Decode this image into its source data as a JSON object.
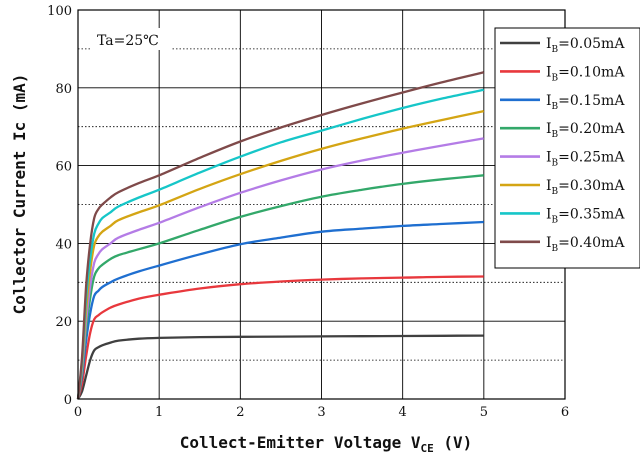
{
  "chart_data": {
    "type": "line",
    "title": "",
    "annotation": "Ta=25℃",
    "xlabel": {
      "main": "Collect-Emitter Voltage V",
      "sub": "CE",
      "unit": " (V)"
    },
    "ylabel": "Collector  Current Ic (mA)",
    "xlim": [
      0,
      6
    ],
    "ylim": [
      0,
      100
    ],
    "xticks": [
      0,
      1,
      2,
      3,
      4,
      5,
      6
    ],
    "yticks": [
      0,
      20,
      40,
      60,
      80,
      100
    ],
    "grid": {
      "solid_y": [
        20,
        40,
        60,
        80
      ],
      "dotted_y": [
        10,
        30,
        50,
        70,
        90
      ],
      "solid_x": [
        1,
        2,
        3,
        4,
        5
      ]
    },
    "legend_position": "top-right",
    "x": [
      0,
      0.05,
      0.1,
      0.15,
      0.2,
      0.25,
      0.3,
      0.4,
      0.5,
      0.75,
      1,
      1.5,
      2,
      2.5,
      3,
      3.5,
      4,
      4.5,
      5
    ],
    "series": [
      {
        "name": "I",
        "sub": "B",
        "value": "=0.05mA",
        "color": "#404040",
        "values": [
          0,
          2,
          6,
          10,
          12.5,
          13.3,
          13.8,
          14.5,
          15,
          15.5,
          15.7,
          15.9,
          16.0,
          16.05,
          16.1,
          16.15,
          16.2,
          16.25,
          16.3
        ]
      },
      {
        "name": "I",
        "sub": "B",
        "value": "=0.10mA",
        "color": "#e8383d",
        "values": [
          0,
          4,
          11,
          17,
          20.5,
          21.5,
          22.3,
          23.5,
          24.3,
          25.8,
          26.8,
          28.4,
          29.5,
          30.2,
          30.7,
          31.0,
          31.2,
          31.4,
          31.5
        ]
      },
      {
        "name": "I",
        "sub": "B",
        "value": "=0.15mA",
        "color": "#1f6fd0",
        "values": [
          0,
          6,
          15,
          22,
          26.5,
          27.8,
          28.8,
          30.0,
          31.0,
          32.8,
          34.3,
          37.2,
          39.8,
          41.5,
          43.0,
          43.8,
          44.5,
          45.0,
          45.5
        ]
      },
      {
        "name": "I",
        "sub": "B",
        "value": "=0.20mA",
        "color": "#33a86a",
        "values": [
          0,
          7,
          18,
          26,
          31.5,
          33.5,
          34.5,
          36.0,
          37.0,
          38.5,
          40.0,
          43.5,
          46.8,
          49.6,
          52.0,
          53.8,
          55.3,
          56.5,
          57.5
        ]
      },
      {
        "name": "I",
        "sub": "B",
        "value": "=0.25mA",
        "color": "#b47ce6",
        "values": [
          0,
          8,
          20,
          29,
          35,
          37.2,
          38.5,
          40.0,
          41.5,
          43.5,
          45.3,
          49.3,
          53.0,
          56.2,
          59.0,
          61.3,
          63.3,
          65.2,
          67.0
        ]
      },
      {
        "name": "I",
        "sub": "B",
        "value": "=0.30mA",
        "color": "#d4a514",
        "values": [
          0,
          9,
          23,
          33,
          39.5,
          41.8,
          43.0,
          44.5,
          46.0,
          48.0,
          49.8,
          54.0,
          57.8,
          61.2,
          64.3,
          67.0,
          69.5,
          71.8,
          74.0
        ]
      },
      {
        "name": "I",
        "sub": "B",
        "value": "=0.35mA",
        "color": "#16c6c8",
        "values": [
          0,
          10,
          26,
          36,
          42.5,
          45,
          46.5,
          48.0,
          49.5,
          51.8,
          53.8,
          58.2,
          62.3,
          66.0,
          69.0,
          72.0,
          74.8,
          77.3,
          79.5
        ]
      },
      {
        "name": "I",
        "sub": "B",
        "value": "=0.40mA",
        "color": "#7f4a4a",
        "values": [
          0,
          11,
          29,
          40,
          46.5,
          48.8,
          50.0,
          51.8,
          53.2,
          55.5,
          57.5,
          62.0,
          66.2,
          69.8,
          73.0,
          76.0,
          78.8,
          81.5,
          84.0
        ]
      }
    ]
  }
}
